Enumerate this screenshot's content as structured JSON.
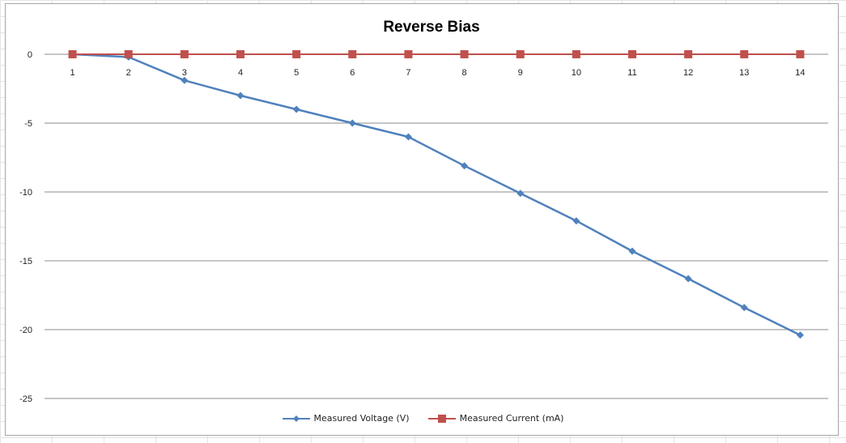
{
  "chart_data": {
    "type": "line",
    "title": "Reverse Bias",
    "xlabel": "",
    "ylabel": "",
    "categories": [
      "1",
      "2",
      "3",
      "4",
      "5",
      "6",
      "7",
      "8",
      "9",
      "10",
      "11",
      "12",
      "13",
      "14"
    ],
    "ylim": [
      -25,
      0
    ],
    "ytick_values": [
      0,
      -5,
      -10,
      -15,
      -20,
      -25
    ],
    "ytick_labels": [
      "0",
      "-5",
      "-10",
      "-15",
      "-20",
      "-25"
    ],
    "grid": true,
    "legend_position": "bottom",
    "series": [
      {
        "name": "Measured Voltage  (V)",
        "color": "#4f81bd",
        "marker": "diamond",
        "values": [
          0,
          -0.2,
          -1.9,
          -3.0,
          -4.0,
          -5.0,
          -6.0,
          -8.1,
          -10.1,
          -12.1,
          -14.3,
          -16.3,
          -18.4,
          -20.4
        ]
      },
      {
        "name": "Measured Current (mA)",
        "color": "#c0504d",
        "marker": "square",
        "values": [
          0,
          0,
          0,
          0,
          0,
          0,
          0,
          0,
          0,
          0,
          0,
          0,
          0,
          0
        ]
      }
    ]
  }
}
